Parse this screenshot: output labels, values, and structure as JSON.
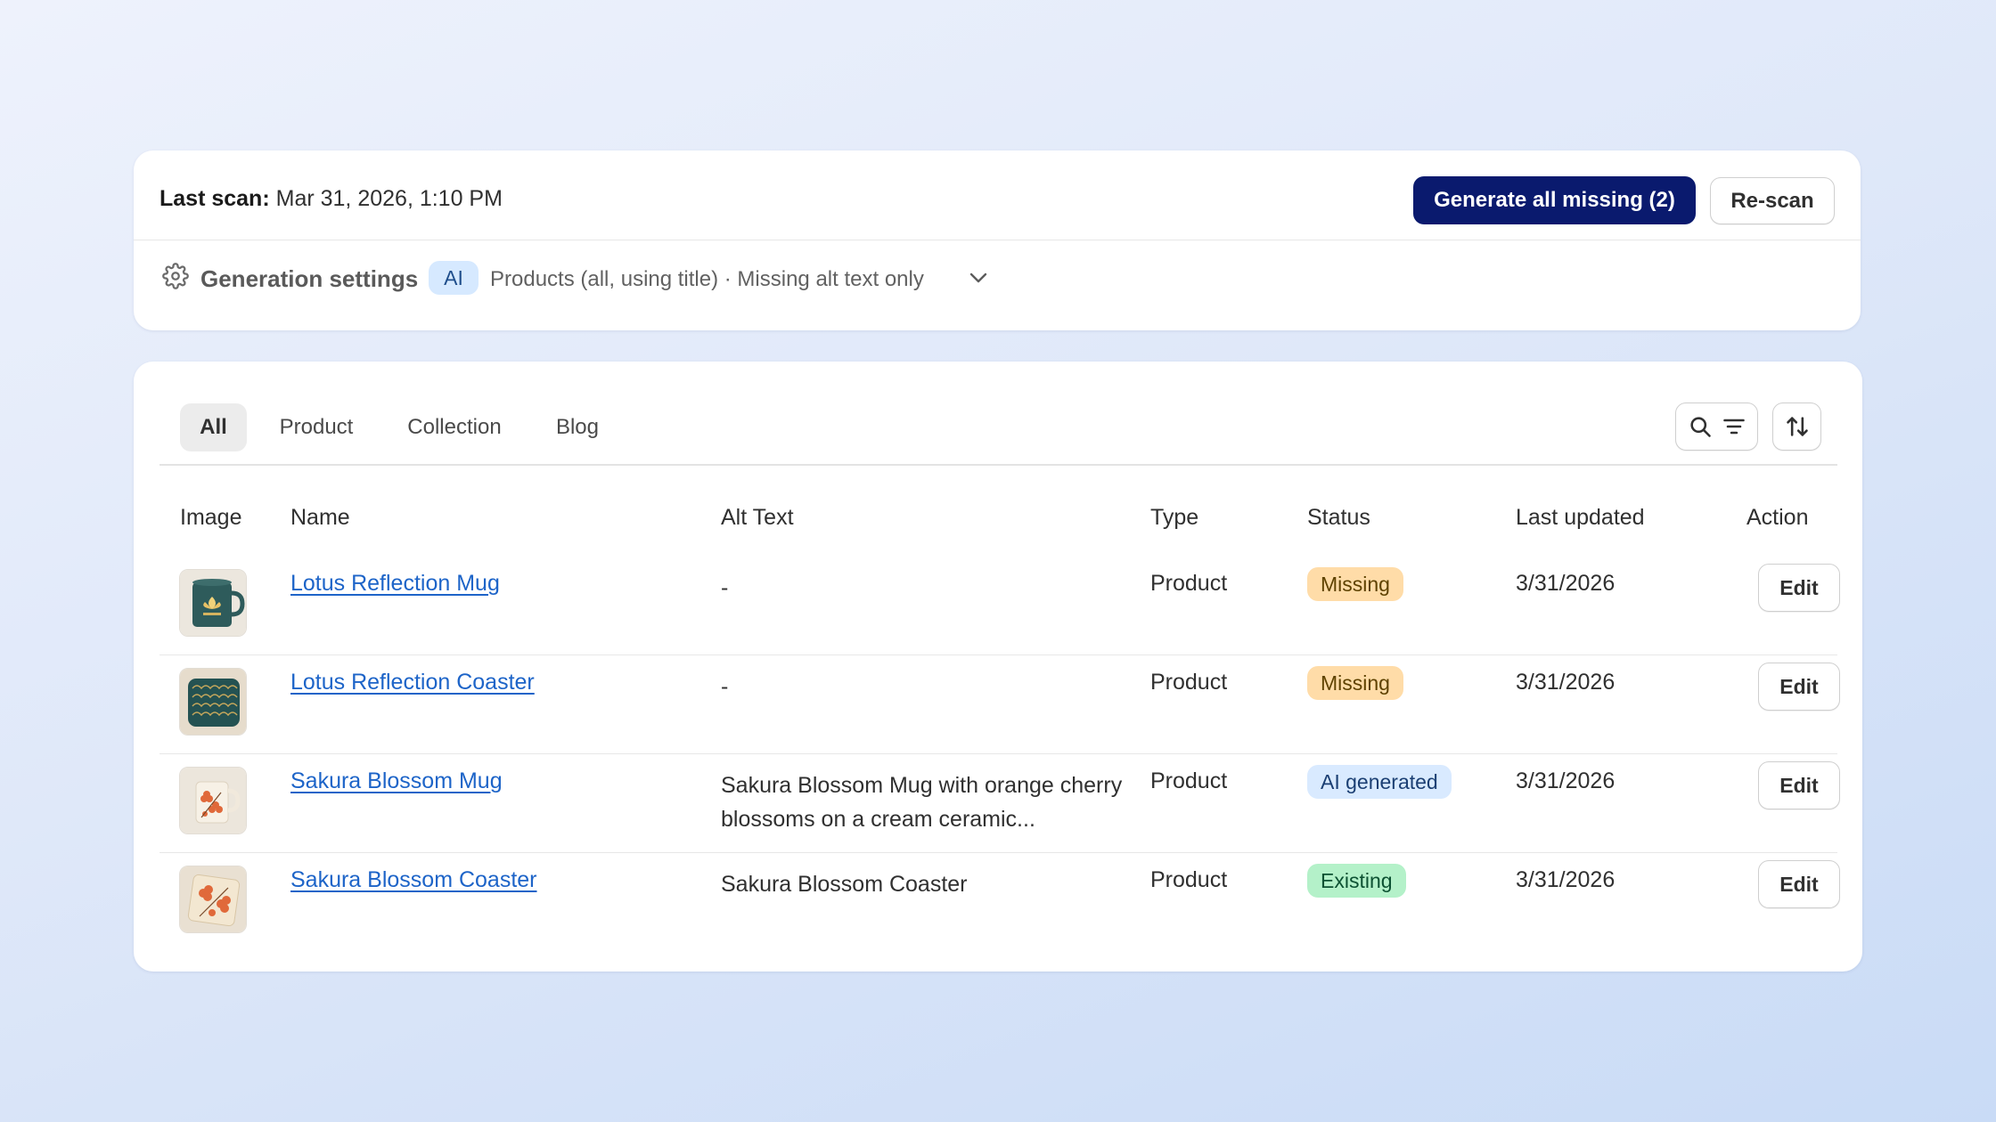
{
  "scan": {
    "label": "Last scan:",
    "value": "Mar 31, 2026, 1:10 PM",
    "generate_button": "Generate all missing (2)",
    "rescan_button": "Re-scan"
  },
  "settings": {
    "title": "Generation settings",
    "chip": "AI",
    "description": "Products (all, using title) · Missing alt text only"
  },
  "tabs": [
    "All",
    "Product",
    "Collection",
    "Blog"
  ],
  "table": {
    "headers": {
      "image": "Image",
      "name": "Name",
      "alt": "Alt Text",
      "type": "Type",
      "status": "Status",
      "updated": "Last updated",
      "action": "Action"
    },
    "rows": [
      {
        "name": "Lotus Reflection Mug",
        "alt": "-",
        "type": "Product",
        "status": "Missing",
        "updated": "3/31/2026",
        "action": "Edit"
      },
      {
        "name": "Lotus Reflection Coaster",
        "alt": "-",
        "type": "Product",
        "status": "Missing",
        "updated": "3/31/2026",
        "action": "Edit"
      },
      {
        "name": "Sakura Blossom Mug",
        "alt": "Sakura Blossom Mug with orange cherry blossoms on a cream ceramic...",
        "type": "Product",
        "status": "AI generated",
        "updated": "3/31/2026",
        "action": "Edit"
      },
      {
        "name": "Sakura Blossom Coaster",
        "alt": "Sakura Blossom Coaster",
        "type": "Product",
        "status": "Existing",
        "updated": "3/31/2026",
        "action": "Edit"
      }
    ]
  },
  "icons": {
    "settings": "gear-icon",
    "expand": "chevron-down-icon",
    "search": "search-icon",
    "filter": "filter-lines-icon",
    "sort": "sort-arrows-icon"
  },
  "colors": {
    "primary_button": "#0a1a6e",
    "link": "#1d64c8",
    "badge_missing": "#ffdca8",
    "badge_ai": "#d9eaff",
    "badge_existing": "#b4f1c9"
  }
}
